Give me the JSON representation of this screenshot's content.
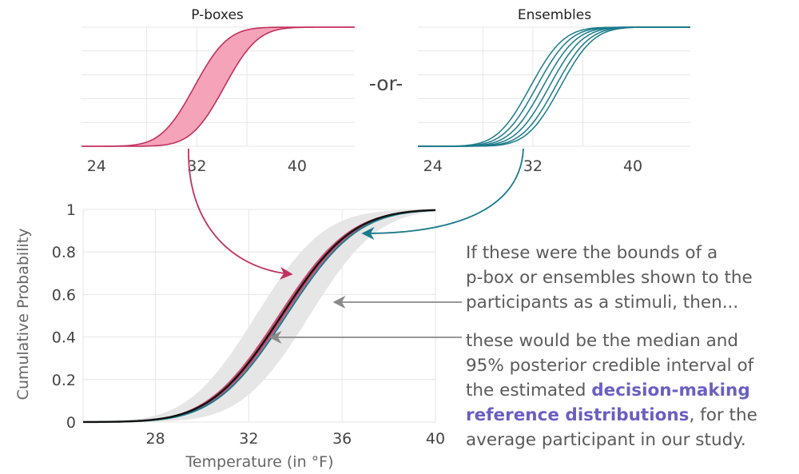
{
  "or_label": "-or-",
  "annotation": {
    "line1": "If these were the bounds of a",
    "line2": "p-box or ensembles shown to the",
    "line3": "participants as a stimuli, then...",
    "line4": "these would be the median and",
    "line5": "95% posterior credible interval of",
    "line6_pre": "the estimated ",
    "line6_hl": "decision-making",
    "line7_hl": "reference distributions",
    "line7_post": ", for the",
    "line8": "average participant in our study."
  },
  "colors": {
    "pbox": "#c2315e",
    "pbox_fill": "#f4a3b8",
    "ensemble": "#1a7a8a",
    "main_band": "#e6e6e6",
    "median": "#111111",
    "highlight": "#6a5fc1",
    "arrow_gray": "#8a8a8a"
  },
  "chart_data": [
    {
      "type": "area",
      "title": "P-boxes",
      "xlabel": "",
      "ylabel": "",
      "xticks": [
        24,
        32,
        40
      ],
      "xlim": [
        24,
        40
      ],
      "ylim": [
        0,
        1
      ],
      "series": [
        {
          "name": "",
          "mean": 31.8,
          "sd": 2.1
        },
        {
          "name": "",
          "mean": 34.2,
          "sd": 2.1
        }
      ]
    },
    {
      "type": "line",
      "title": "Ensembles",
      "xlabel": "",
      "ylabel": "",
      "xticks": [
        24,
        32,
        40
      ],
      "xlim": [
        24,
        40
      ],
      "ylim": [
        0,
        1
      ],
      "series": [
        {
          "name": "",
          "mean": 31.8,
          "sd": 2.1
        },
        {
          "name": "",
          "mean": 32.3,
          "sd": 2.1
        },
        {
          "name": "",
          "mean": 32.8,
          "sd": 2.1
        },
        {
          "name": "",
          "mean": 33.3,
          "sd": 2.1
        },
        {
          "name": "",
          "mean": 33.8,
          "sd": 2.1
        },
        {
          "name": "",
          "mean": 34.2,
          "sd": 2.1
        }
      ]
    },
    {
      "type": "area",
      "title": "",
      "xlabel": "Temperature (in °F)",
      "ylabel": "Cumulative Probability",
      "xticks": [
        28,
        32,
        36,
        40
      ],
      "yticks": [
        0,
        0.2,
        0.4,
        0.6,
        0.8,
        1
      ],
      "ytick_labels": [
        "0",
        "0.2",
        "0.4",
        "0.6",
        "0.8",
        "1"
      ],
      "xlim": [
        24,
        40
      ],
      "ylim": [
        0,
        1
      ],
      "grid": true,
      "credible_interval": {
        "lower_mean": 32.3,
        "upper_mean": 34.6,
        "sd": 2.3
      },
      "pbox_median": {
        "lower_mean": 33.25,
        "upper_mean": 33.55,
        "sd": 2.4
      },
      "ensemble_median": {
        "mean": 33.6,
        "sd": 2.4
      },
      "median": {
        "mean": 33.4,
        "sd": 2.4
      }
    }
  ]
}
